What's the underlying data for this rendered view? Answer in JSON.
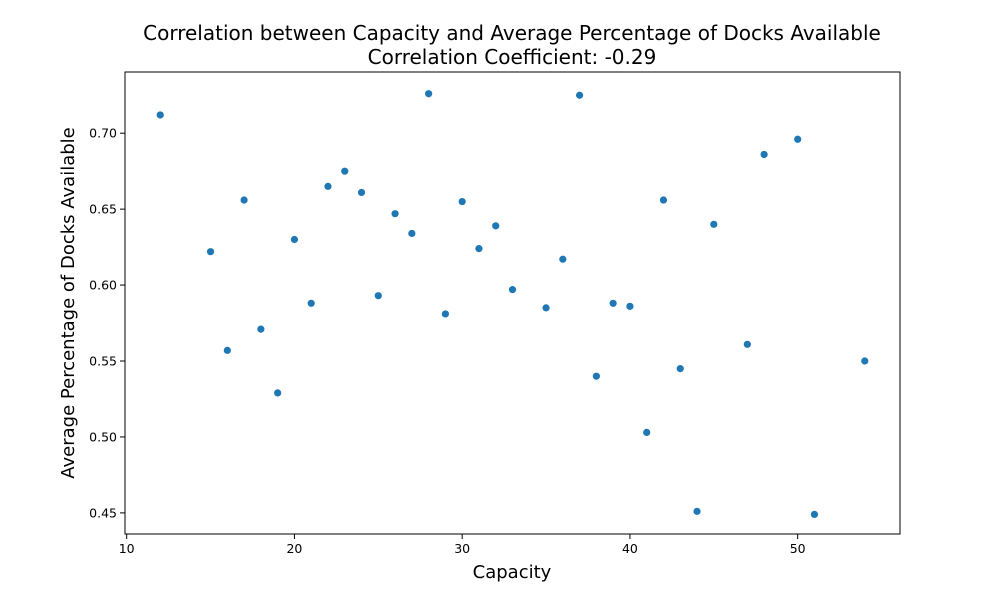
{
  "chart_data": {
    "type": "scatter",
    "title": "Correlation between Capacity and Average Percentage of Docks Available",
    "subtitle": "Correlation Coefficient: -0.29",
    "xlabel": "Capacity",
    "ylabel": "Average Percentage of Docks Available",
    "xlim": [
      9.9,
      56.1
    ],
    "ylim": [
      0.4361,
      0.7403
    ],
    "x_ticks": [
      10,
      20,
      30,
      40,
      50
    ],
    "y_ticks": [
      0.45,
      0.5,
      0.55,
      0.6,
      0.65,
      0.7
    ],
    "x_tick_labels": [
      "10",
      "20",
      "30",
      "40",
      "50"
    ],
    "y_tick_labels": [
      "0.45",
      "0.50",
      "0.55",
      "0.60",
      "0.65",
      "0.70"
    ],
    "grid": false,
    "marker_color": "#1f77b4",
    "points": [
      {
        "x": 12,
        "y": 0.712
      },
      {
        "x": 15,
        "y": 0.622
      },
      {
        "x": 16,
        "y": 0.557
      },
      {
        "x": 17,
        "y": 0.656
      },
      {
        "x": 18,
        "y": 0.571
      },
      {
        "x": 19,
        "y": 0.529
      },
      {
        "x": 20,
        "y": 0.63
      },
      {
        "x": 21,
        "y": 0.588
      },
      {
        "x": 22,
        "y": 0.665
      },
      {
        "x": 23,
        "y": 0.675
      },
      {
        "x": 24,
        "y": 0.661
      },
      {
        "x": 25,
        "y": 0.593
      },
      {
        "x": 26,
        "y": 0.647
      },
      {
        "x": 27,
        "y": 0.634
      },
      {
        "x": 28,
        "y": 0.726
      },
      {
        "x": 29,
        "y": 0.581
      },
      {
        "x": 30,
        "y": 0.655
      },
      {
        "x": 31,
        "y": 0.624
      },
      {
        "x": 32,
        "y": 0.639
      },
      {
        "x": 33,
        "y": 0.597
      },
      {
        "x": 35,
        "y": 0.585
      },
      {
        "x": 36,
        "y": 0.617
      },
      {
        "x": 37,
        "y": 0.725
      },
      {
        "x": 38,
        "y": 0.54
      },
      {
        "x": 39,
        "y": 0.588
      },
      {
        "x": 40,
        "y": 0.586
      },
      {
        "x": 41,
        "y": 0.503
      },
      {
        "x": 42,
        "y": 0.656
      },
      {
        "x": 43,
        "y": 0.545
      },
      {
        "x": 44,
        "y": 0.451
      },
      {
        "x": 45,
        "y": 0.64
      },
      {
        "x": 47,
        "y": 0.561
      },
      {
        "x": 48,
        "y": 0.686
      },
      {
        "x": 50,
        "y": 0.696
      },
      {
        "x": 51,
        "y": 0.449
      },
      {
        "x": 54,
        "y": 0.55
      }
    ]
  }
}
